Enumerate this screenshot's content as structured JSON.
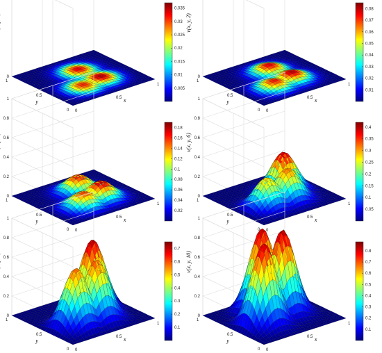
{
  "figure": {
    "panels": [
      {
        "zlabel": "v(x, y, 0)",
        "xlabel": "x",
        "ylabel": "y",
        "x_ticks": [
          "0",
          "0.5",
          "1"
        ],
        "y_ticks": [
          "0",
          "0.5",
          "1"
        ],
        "z_ticks": [
          "0",
          "1"
        ],
        "colorbar_ticks": [
          "0.005",
          "0.01",
          "0.015",
          "0.02",
          "0.025",
          "0.03",
          "0.035"
        ],
        "colorbar_range": [
          0,
          0.037
        ]
      },
      {
        "zlabel": "v(x, y, 2)",
        "xlabel": "x",
        "ylabel": "y",
        "x_ticks": [
          "0",
          "0.5",
          "1"
        ],
        "y_ticks": [
          "0",
          "0.5",
          "1"
        ],
        "z_ticks": [
          "0",
          "1"
        ],
        "colorbar_ticks": [
          "0.01",
          "0.02",
          "0.03",
          "0.04",
          "0.05",
          "0.06",
          "0.07",
          "0.08"
        ],
        "colorbar_range": [
          0,
          0.085
        ]
      },
      {
        "zlabel": "v(x, y, 4)",
        "xlabel": "x",
        "ylabel": "y",
        "x_ticks": [
          "0",
          "0.5",
          "1"
        ],
        "y_ticks": [
          "0",
          "0.5",
          "1"
        ],
        "z_ticks": [
          "0",
          "0.2",
          "0.4",
          "0.6",
          "0.8",
          "1"
        ],
        "colorbar_ticks": [
          "0.02",
          "0.04",
          "0.06",
          "0.08",
          "0.1",
          "0.12",
          "0.14",
          "0.16",
          "0.18"
        ],
        "colorbar_range": [
          0,
          0.19
        ]
      },
      {
        "zlabel": "v(x, y, 6)",
        "xlabel": "x",
        "ylabel": "y",
        "x_ticks": [
          "0",
          "0.5",
          "1"
        ],
        "y_ticks": [
          "0",
          "0.5",
          "1"
        ],
        "z_ticks": [
          "0",
          "0.2",
          "0.4",
          "0.6",
          "0.8",
          "1"
        ],
        "colorbar_ticks": [
          "0.05",
          "0.1",
          "0.15",
          "0.2",
          "0.25",
          "0.3",
          "0.35",
          "0.4"
        ],
        "colorbar_range": [
          0,
          0.42
        ]
      },
      {
        "zlabel": "v(x, y, 8)",
        "xlabel": "x",
        "ylabel": "y",
        "x_ticks": [
          "0",
          "0.5",
          "1"
        ],
        "y_ticks": [
          "0",
          "0.5",
          "1"
        ],
        "z_ticks": [
          "0",
          "0.2",
          "0.4",
          "0.6",
          "0.8",
          "1"
        ],
        "colorbar_ticks": [
          "0.1",
          "0.2",
          "0.3",
          "0.4",
          "0.5",
          "0.6",
          "0.7"
        ],
        "colorbar_range": [
          0,
          0.75
        ]
      },
      {
        "zlabel": "v(x, y, 10)",
        "xlabel": "x",
        "ylabel": "y",
        "x_ticks": [
          "0",
          "0.5",
          "1"
        ],
        "y_ticks": [
          "0",
          "0.5",
          "1"
        ],
        "z_ticks": [
          "0",
          "0.2",
          "0.4",
          "0.6",
          "0.8",
          "1"
        ],
        "colorbar_ticks": [
          "0.1",
          "0.2",
          "0.3",
          "0.4",
          "0.5",
          "0.6",
          "0.7",
          "0.8"
        ],
        "colorbar_range": [
          0,
          0.88
        ]
      }
    ]
  },
  "chart_data": [
    {
      "type": "surface3d",
      "time": 0,
      "zlabel": "v(x, y, 0)",
      "xlim": [
        0,
        1
      ],
      "ylim": [
        0,
        1
      ],
      "zlim": [
        0,
        1
      ],
      "zmax_shown": 0.036,
      "colormap": "jet",
      "peaks": [
        {
          "x": 0.35,
          "y": 0.3,
          "height": 0.032
        },
        {
          "x": 0.6,
          "y": 0.35,
          "height": 0.036
        },
        {
          "x": 0.55,
          "y": 0.65,
          "height": 0.034
        }
      ]
    },
    {
      "type": "surface3d",
      "time": 2,
      "zlabel": "v(x, y, 2)",
      "xlim": [
        0,
        1
      ],
      "ylim": [
        0,
        1
      ],
      "zlim": [
        0,
        1
      ],
      "zmax_shown": 0.082,
      "colormap": "jet",
      "peaks": [
        {
          "x": 0.35,
          "y": 0.3,
          "height": 0.075
        },
        {
          "x": 0.6,
          "y": 0.35,
          "height": 0.082
        },
        {
          "x": 0.55,
          "y": 0.65,
          "height": 0.078
        }
      ]
    },
    {
      "type": "surface3d",
      "time": 4,
      "zlabel": "v(x, y, 4)",
      "xlim": [
        0,
        1
      ],
      "ylim": [
        0,
        1
      ],
      "zlim": [
        0,
        1
      ],
      "zmax_shown": 0.185,
      "colormap": "jet",
      "peaks": [
        {
          "x": 0.35,
          "y": 0.3,
          "height": 0.16
        },
        {
          "x": 0.6,
          "y": 0.35,
          "height": 0.185
        },
        {
          "x": 0.55,
          "y": 0.65,
          "height": 0.17
        }
      ]
    },
    {
      "type": "surface3d",
      "time": 6,
      "zlabel": "v(x, y, 6)",
      "xlim": [
        0,
        1
      ],
      "ylim": [
        0,
        1
      ],
      "zlim": [
        0,
        1
      ],
      "zmax_shown": 0.41,
      "colormap": "jet",
      "peaks": [
        {
          "x": 0.3,
          "y": 0.35,
          "height": 0.3
        },
        {
          "x": 0.65,
          "y": 0.55,
          "height": 0.41
        },
        {
          "x": 0.55,
          "y": 0.35,
          "height": 0.33
        }
      ]
    },
    {
      "type": "surface3d",
      "time": 8,
      "zlabel": "v(x, y, 8)",
      "xlim": [
        0,
        1
      ],
      "ylim": [
        0,
        1
      ],
      "zlim": [
        0,
        1
      ],
      "zmax_shown": 0.74,
      "colormap": "jet",
      "peaks": [
        {
          "x": 0.3,
          "y": 0.35,
          "height": 0.6
        },
        {
          "x": 0.65,
          "y": 0.55,
          "height": 0.74
        },
        {
          "x": 0.55,
          "y": 0.35,
          "height": 0.62
        }
      ]
    },
    {
      "type": "surface3d",
      "time": 10,
      "zlabel": "v(x, y, 10)",
      "xlim": [
        0,
        1
      ],
      "ylim": [
        0,
        1
      ],
      "zlim": [
        0,
        1
      ],
      "zmax_shown": 0.87,
      "colormap": "jet",
      "peaks": [
        {
          "x": 0.3,
          "y": 0.4,
          "height": 0.84
        },
        {
          "x": 0.6,
          "y": 0.5,
          "height": 0.87
        },
        {
          "x": 0.5,
          "y": 0.7,
          "height": 0.85
        }
      ]
    }
  ],
  "colors": {
    "colormap_stops": [
      "#00007f",
      "#0000ff",
      "#007fff",
      "#00ffff",
      "#7fff7f",
      "#ffff00",
      "#ff7f00",
      "#ff0000",
      "#7f0000"
    ]
  }
}
